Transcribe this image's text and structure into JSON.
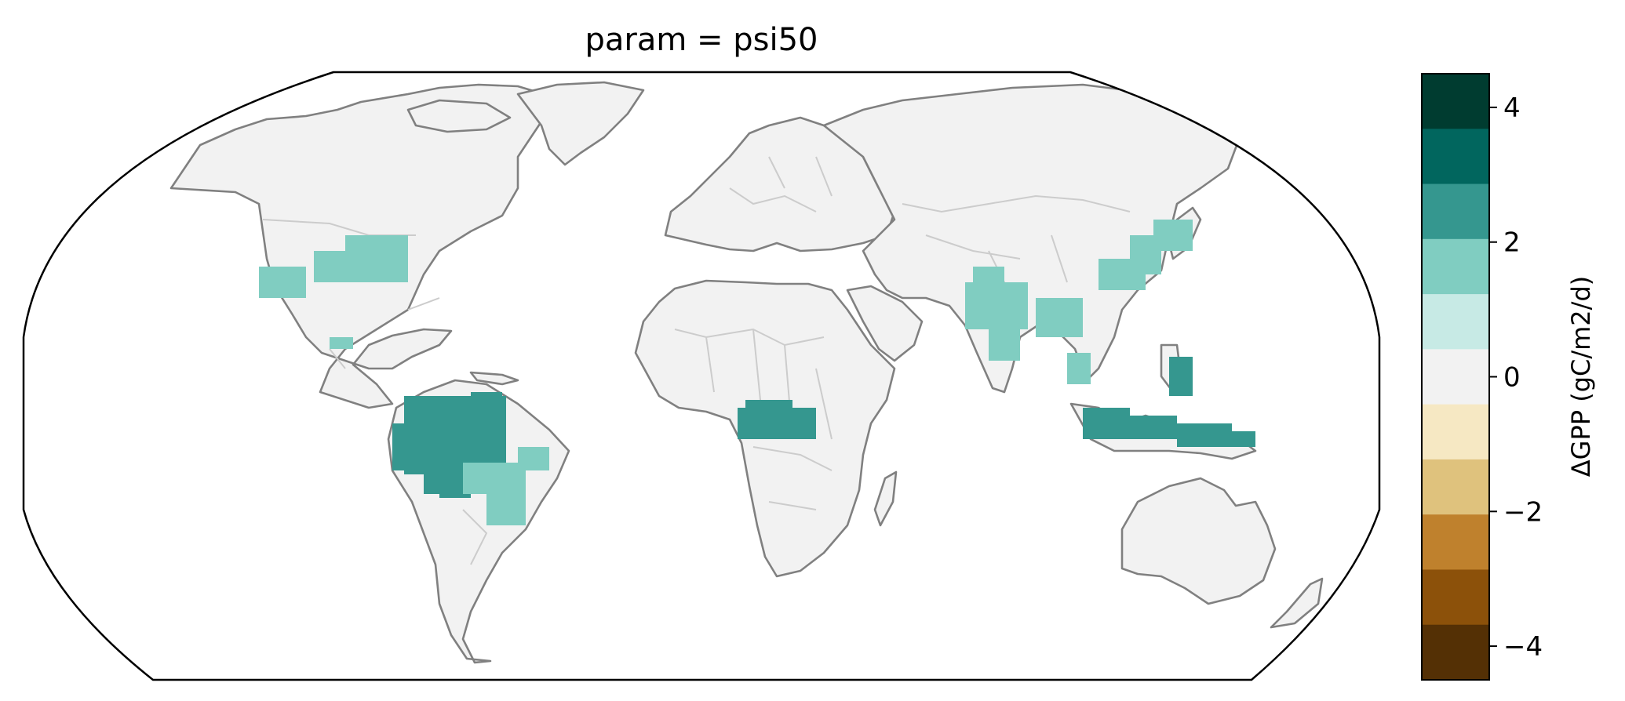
{
  "title": "param = psi50",
  "colorbar": {
    "label": "ΔGPP (gC/m2/d)",
    "range": [
      -4.5,
      4.5
    ],
    "ticks": [
      {
        "value": 4,
        "text": "4"
      },
      {
        "value": 2,
        "text": "2"
      },
      {
        "value": 0,
        "text": "0"
      },
      {
        "value": -2,
        "text": "−2"
      },
      {
        "value": -4,
        "text": "−4"
      }
    ],
    "bins": [
      {
        "from": 3.5,
        "to": 4.5,
        "color": "#003c30"
      },
      {
        "from": 2.5,
        "to": 3.5,
        "color": "#01665e"
      },
      {
        "from": 1.5,
        "to": 2.5,
        "color": "#35978f"
      },
      {
        "from": 0.5,
        "to": 1.5,
        "color": "#80cdc1"
      },
      {
        "from": -0.5,
        "to": 0.5,
        "color": "#c7eae5"
      },
      {
        "from": -0.5,
        "to": 0.5,
        "color": "#f2f2f2"
      },
      {
        "from": -1.5,
        "to": -0.5,
        "color": "#f6e8c3"
      },
      {
        "from": -2.5,
        "to": -1.5,
        "color": "#dfc27d"
      },
      {
        "from": -3.5,
        "to": -2.5,
        "color": "#bf812d"
      },
      {
        "from": -4.5,
        "to": -3.5,
        "color": "#8c510a"
      },
      {
        "from": -5.5,
        "to": -4.5,
        "color": "#543005"
      }
    ]
  },
  "map": {
    "projection": "Robinson",
    "land_color": "#f2f2f2",
    "coastline_color": "#808080",
    "border_color": "#cccccc",
    "regions": [
      {
        "name": "Amazon basin",
        "value": 2
      },
      {
        "name": "Congo basin",
        "value": 2
      },
      {
        "name": "Indonesia",
        "value": 2
      },
      {
        "name": "Eastern North America",
        "value": 1
      },
      {
        "name": "South / Southeast Asia",
        "value": 1
      },
      {
        "name": "Eastern China",
        "value": 1
      },
      {
        "name": "Southeastern Brazil",
        "value": 1
      }
    ]
  }
}
